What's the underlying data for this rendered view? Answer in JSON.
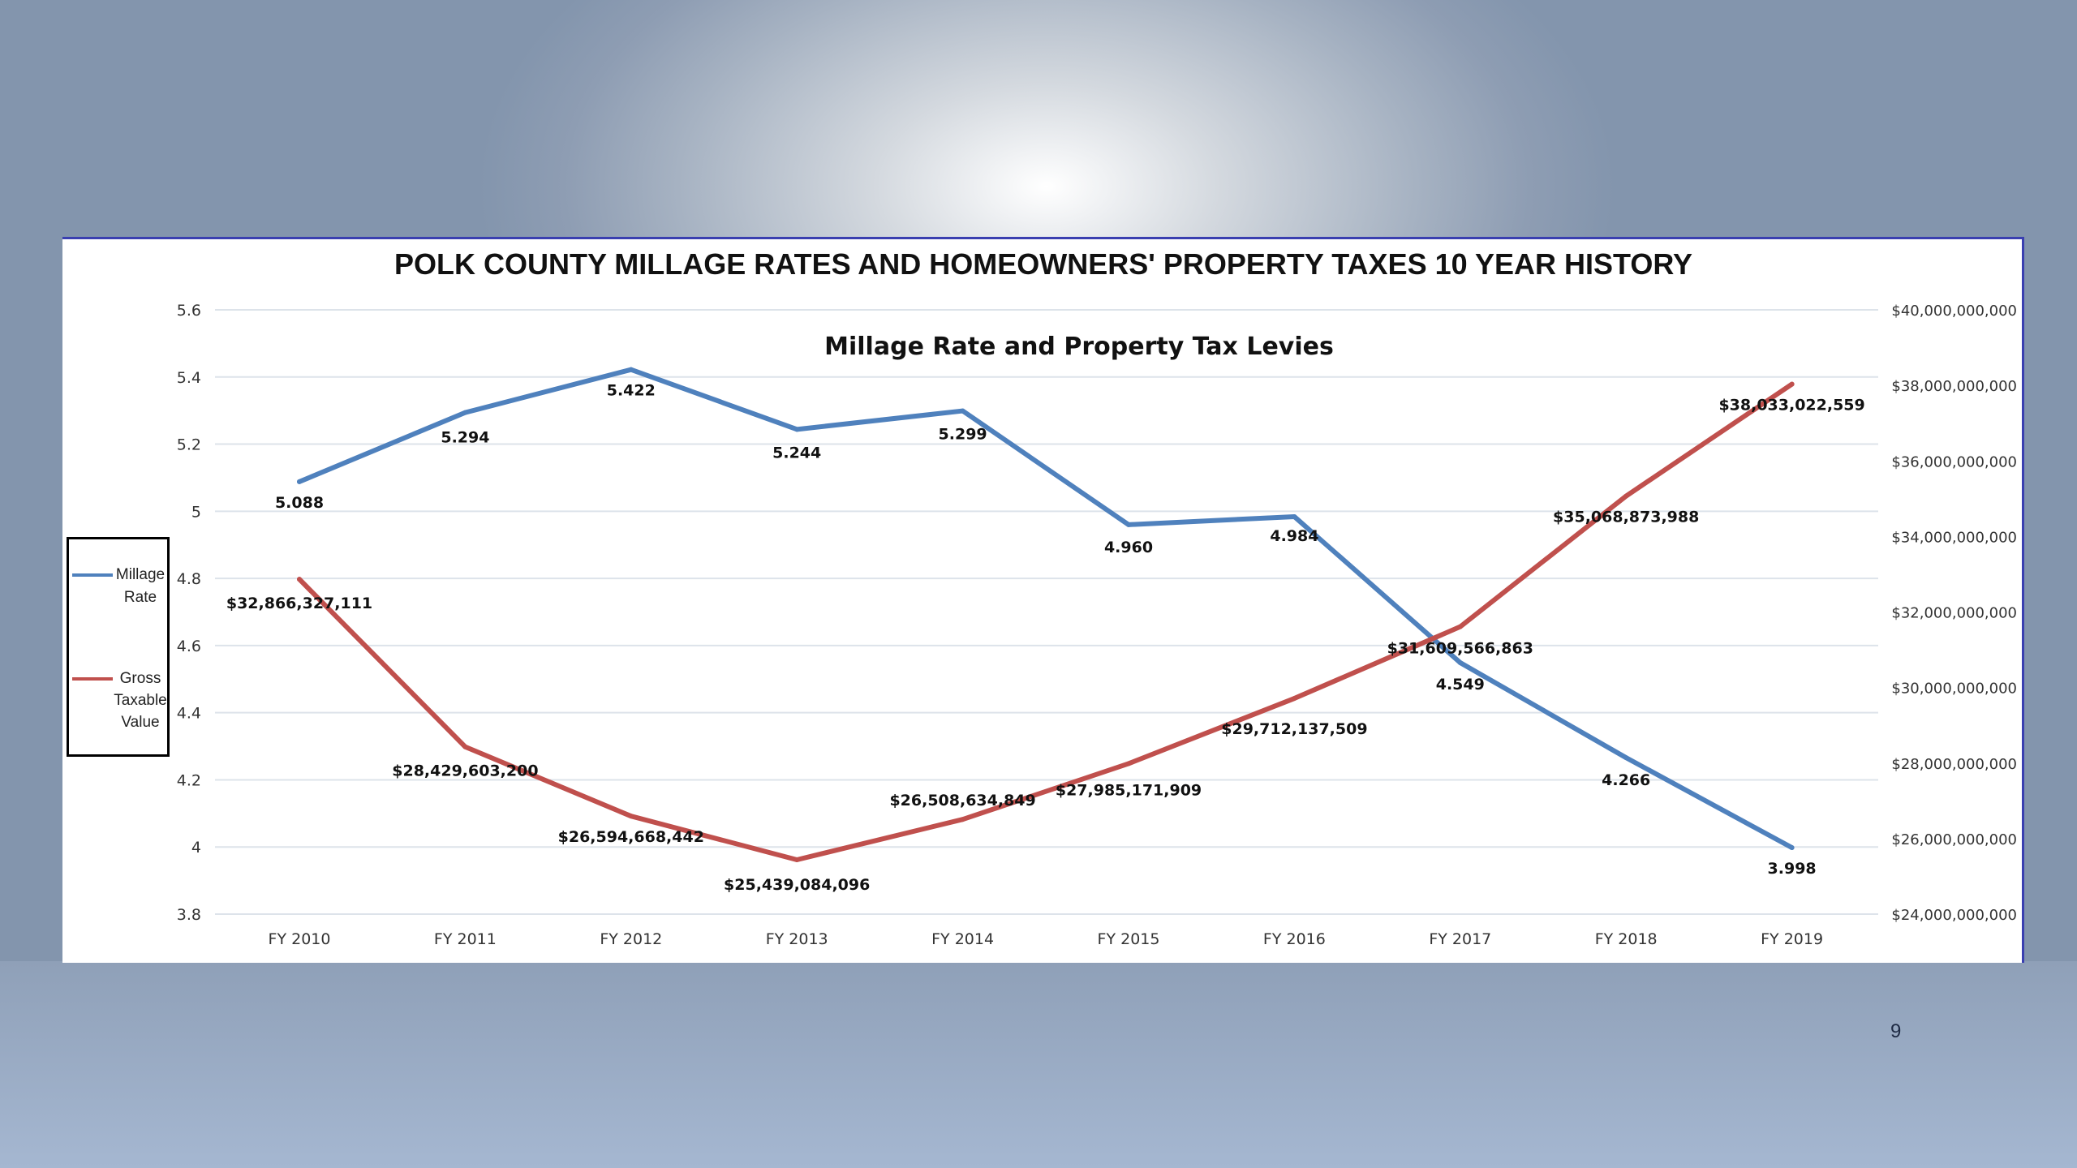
{
  "slide": {
    "page_number": "9"
  },
  "panel_title": "POLK COUNTY MILLAGE RATES AND HOMEOWNERS' PROPERTY TAXES 10 YEAR HISTORY",
  "chart_data": {
    "type": "line",
    "title": "Millage Rate and Property Tax Levies",
    "categories": [
      "FY 2010",
      "FY 2011",
      "FY 2012",
      "FY 2013",
      "FY 2014",
      "FY 2015",
      "FY 2016",
      "FY 2017",
      "FY 2018",
      "FY 2019"
    ],
    "series": [
      {
        "name": "Millage Rate",
        "axis": "left",
        "color": "#4f81bd",
        "values": [
          5.088,
          5.294,
          5.422,
          5.244,
          5.299,
          4.96,
          4.984,
          4.549,
          4.266,
          3.998
        ],
        "labels": [
          "5.088",
          "5.294",
          "5.422",
          "5.244",
          "5.299",
          "4.960",
          "4.984",
          "4.549",
          "4.266",
          "3.998"
        ]
      },
      {
        "name": "Gross Taxable Value",
        "axis": "right",
        "color": "#c0504d",
        "values": [
          32866327111,
          28429603200,
          26594668442,
          25439084096,
          26508634849,
          27985171909,
          29712137509,
          31609566863,
          35068873988,
          38033022559
        ],
        "labels": [
          "$32,866,327,111",
          "$28,429,603,200",
          "$26,594,668,442",
          "$25,439,084,096",
          "$26,508,634,849",
          "$27,985,171,909",
          "$29,712,137,509",
          "$31,609,566,863",
          "$35,068,873,988",
          "$38,033,022,559"
        ]
      }
    ],
    "y_left": {
      "min": 3.8,
      "max": 5.6,
      "ticks": [
        3.8,
        4,
        4.2,
        4.4,
        4.6,
        4.8,
        5,
        5.2,
        5.4,
        5.6
      ],
      "tick_labels": [
        "3.8",
        "4",
        "4.2",
        "4.4",
        "4.6",
        "4.8",
        "5",
        "5.2",
        "5.4",
        "5.6"
      ]
    },
    "y_right": {
      "min": 24000000000,
      "max": 40000000000,
      "ticks": [
        24000000000,
        26000000000,
        28000000000,
        30000000000,
        32000000000,
        34000000000,
        36000000000,
        38000000000,
        40000000000
      ],
      "tick_labels": [
        "$24,000,000,000",
        "$26,000,000,000",
        "$28,000,000,000",
        "$30,000,000,000",
        "$32,000,000,000",
        "$34,000,000,000",
        "$36,000,000,000",
        "$38,000,000,000",
        "$40,000,000,000"
      ]
    },
    "grid": true,
    "legend": {
      "position": "left",
      "entries": [
        {
          "label_line1": "Millage",
          "label_line2": "Rate",
          "color": "#4f81bd"
        },
        {
          "label_line1": "Gross",
          "label_line2": "Taxable",
          "label_line3": "Value",
          "color": "#c0504d"
        }
      ]
    }
  }
}
